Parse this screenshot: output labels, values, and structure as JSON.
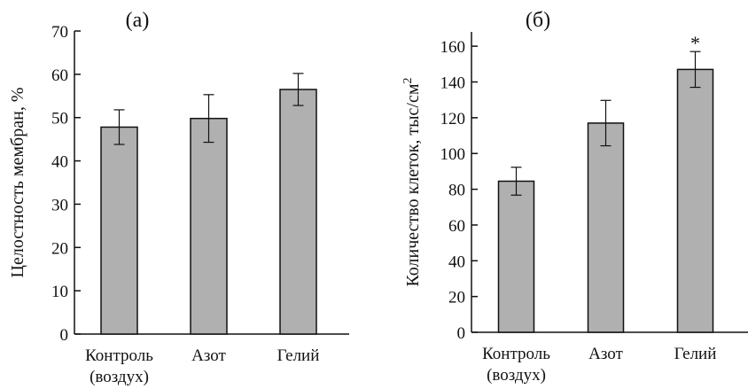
{
  "chart_data": [
    {
      "type": "bar",
      "panel_label": "(а)",
      "categories": [
        [
          "Контроль",
          "(воздух)"
        ],
        [
          "Азот"
        ],
        [
          "Гелий"
        ]
      ],
      "values": [
        47.8,
        49.8,
        56.5
      ],
      "errors": [
        4.0,
        5.5,
        3.7
      ],
      "markers": [
        "",
        "",
        ""
      ],
      "ylabel": "Целостность мембран, %",
      "ylim": [
        0,
        70
      ],
      "yticks": [
        0,
        10,
        20,
        30,
        40,
        50,
        60,
        70
      ],
      "bar_color": "#b0b0b0",
      "grid": false
    },
    {
      "type": "bar",
      "panel_label": "(б)",
      "categories": [
        [
          "Контроль",
          "(воздух)"
        ],
        [
          "Азот"
        ],
        [
          "Гелий"
        ]
      ],
      "values": [
        84.5,
        117,
        147
      ],
      "errors": [
        7.8,
        12.7,
        10.0
      ],
      "markers": [
        "",
        "",
        "*"
      ],
      "ylabel": "Количество клеток, тыс/см",
      "ylabel_sup": "2",
      "ylim": [
        0,
        168
      ],
      "yticks": [
        0,
        20,
        40,
        60,
        80,
        100,
        120,
        140,
        160
      ],
      "bar_color": "#b0b0b0",
      "grid": false
    }
  ]
}
